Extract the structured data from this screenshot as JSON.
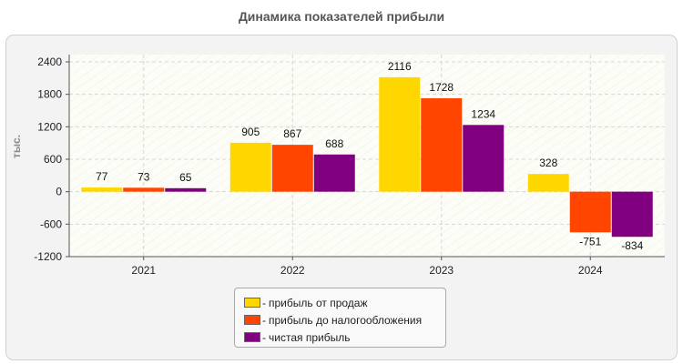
{
  "title": "Динамика показателей прибыли",
  "chart_data": {
    "type": "bar",
    "ylabel": "тыс.",
    "categories": [
      "2021",
      "2022",
      "2023",
      "2024"
    ],
    "ylim": [
      -1200,
      2400
    ],
    "yticks": [
      2400,
      1800,
      1200,
      600,
      0,
      -600,
      -1200
    ],
    "grid": true,
    "legend_position": "bottom-center",
    "series": [
      {
        "name": "прибыль от продаж",
        "color": "#FFD700",
        "values": [
          77,
          905,
          2116,
          328
        ]
      },
      {
        "name": "прибыль до налогообложения",
        "color": "#FF4500",
        "values": [
          73,
          867,
          1728,
          -751
        ]
      },
      {
        "name": "чистая прибыль",
        "color": "#800080",
        "values": [
          65,
          688,
          1234,
          -834
        ]
      }
    ]
  },
  "legend": {
    "dash": "-",
    "items": [
      {
        "label": "прибыль от продаж",
        "color": "#FFD700"
      },
      {
        "label": "прибыль до налогообложения",
        "color": "#FF4500"
      },
      {
        "label": "чистая прибыль",
        "color": "#800080"
      }
    ]
  }
}
